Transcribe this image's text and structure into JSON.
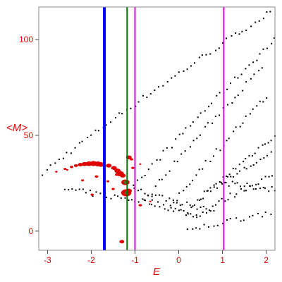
{
  "chart_data": {
    "type": "scatter",
    "xlabel": "E",
    "ylabel": "<M>",
    "xlim": [
      -3.2,
      2.2
    ],
    "ylim": [
      -10,
      117
    ],
    "x_ticks": [
      -3,
      -2,
      -1,
      0,
      1,
      2
    ],
    "y_ticks": [
      0,
      50,
      100
    ],
    "grid": false,
    "legend": "none",
    "vertical_lines": [
      {
        "x": -1.7,
        "color": "#0000ff"
      },
      {
        "x": -1.18,
        "color": "#007000"
      },
      {
        "x": -1.0,
        "color": "#e000e0"
      },
      {
        "x": 1.03,
        "color": "#e000e0"
      }
    ],
    "highlight_color": "#e00000",
    "point_color": "#000000",
    "highlight_points": [
      {
        "x": -2.6,
        "y": 32.5,
        "s": 1.3
      },
      {
        "x": -2.45,
        "y": 33.5,
        "s": 1.5
      },
      {
        "x": -2.35,
        "y": 34.2,
        "s": 1.8
      },
      {
        "x": -2.25,
        "y": 34.7,
        "s": 2.2
      },
      {
        "x": -2.15,
        "y": 35.0,
        "s": 2.6
      },
      {
        "x": -2.05,
        "y": 35.2,
        "s": 3.0
      },
      {
        "x": -1.95,
        "y": 35.3,
        "s": 3.2
      },
      {
        "x": -1.85,
        "y": 35.1,
        "s": 3.2
      },
      {
        "x": -1.78,
        "y": 34.8,
        "s": 3.0
      },
      {
        "x": -1.6,
        "y": 34.2,
        "s": 2.5
      },
      {
        "x": -1.48,
        "y": 33.0,
        "s": 2.5
      },
      {
        "x": -1.4,
        "y": 31.5,
        "s": 2.8
      },
      {
        "x": -1.34,
        "y": 30.0,
        "s": 3.4
      },
      {
        "x": -1.28,
        "y": 29.0,
        "s": 2.6
      },
      {
        "x": -1.22,
        "y": 25.5,
        "s": 3.6
      },
      {
        "x": -1.2,
        "y": 20.0,
        "s": 4.5
      },
      {
        "x": -1.15,
        "y": 21.0,
        "s": 3.0
      },
      {
        "x": -1.14,
        "y": 38.5,
        "s": 2.5
      },
      {
        "x": -1.08,
        "y": 37.5,
        "s": 1.5
      },
      {
        "x": -1.05,
        "y": 33.0,
        "s": 1.4
      },
      {
        "x": -1.88,
        "y": 28.5,
        "s": 1.6
      },
      {
        "x": -2.2,
        "y": 26.5,
        "s": 1.3
      },
      {
        "x": -1.62,
        "y": 26.0,
        "s": 1.3
      },
      {
        "x": -1.5,
        "y": 22.0,
        "s": 1.4
      },
      {
        "x": -1.42,
        "y": 29.5,
        "s": 1.5
      },
      {
        "x": -1.98,
        "y": 19.0,
        "s": 1.4
      },
      {
        "x": -1.3,
        "y": -5.5,
        "s": 2.2
      },
      {
        "x": -0.88,
        "y": 13.5,
        "s": 1.5
      },
      {
        "x": -0.65,
        "y": 15.5,
        "s": 1.0
      },
      {
        "x": -0.88,
        "y": 35.0,
        "s": 1.0
      },
      {
        "x": -2.8,
        "y": 31.0,
        "s": 1.1
      },
      {
        "x": -2.55,
        "y": 32.0,
        "s": 1.0
      }
    ],
    "point_series": [
      {
        "x0": -3.2,
        "x1": 2.2,
        "y0": 28.0,
        "y1": 116.0,
        "n": 60
      },
      {
        "x0": -1.1,
        "x1": 2.2,
        "y0": 20.0,
        "y1": 100.0,
        "n": 40
      },
      {
        "x0": -0.8,
        "x1": 1.9,
        "y0": 15.0,
        "y1": 85.0,
        "n": 32
      },
      {
        "x0": -2.6,
        "x1": -0.6,
        "y0": 22.0,
        "y1": 15.0,
        "n": 26
      },
      {
        "x0": -0.6,
        "x1": 0.4,
        "y0": 15.0,
        "y1": 8.0,
        "n": 18
      },
      {
        "x0": 0.4,
        "x1": 2.2,
        "y0": 8.0,
        "y1": 30.0,
        "n": 26
      },
      {
        "x0": -0.2,
        "x1": 2.0,
        "y0": 12.0,
        "y1": 70.0,
        "n": 30
      },
      {
        "x0": 0.2,
        "x1": 2.2,
        "y0": 10.0,
        "y1": 50.0,
        "n": 28
      },
      {
        "x0": -1.0,
        "x1": 0.8,
        "y0": 22.0,
        "y1": 10.0,
        "n": 24
      },
      {
        "x0": 0.5,
        "x1": 2.1,
        "y0": 18.0,
        "y1": 40.0,
        "n": 22
      },
      {
        "x0": 0.2,
        "x1": 2.1,
        "y0": 0.0,
        "y1": 10.0,
        "n": 20
      },
      {
        "x0": 1.0,
        "x1": 2.2,
        "y0": 25.0,
        "y1": 22.0,
        "n": 18
      }
    ]
  }
}
